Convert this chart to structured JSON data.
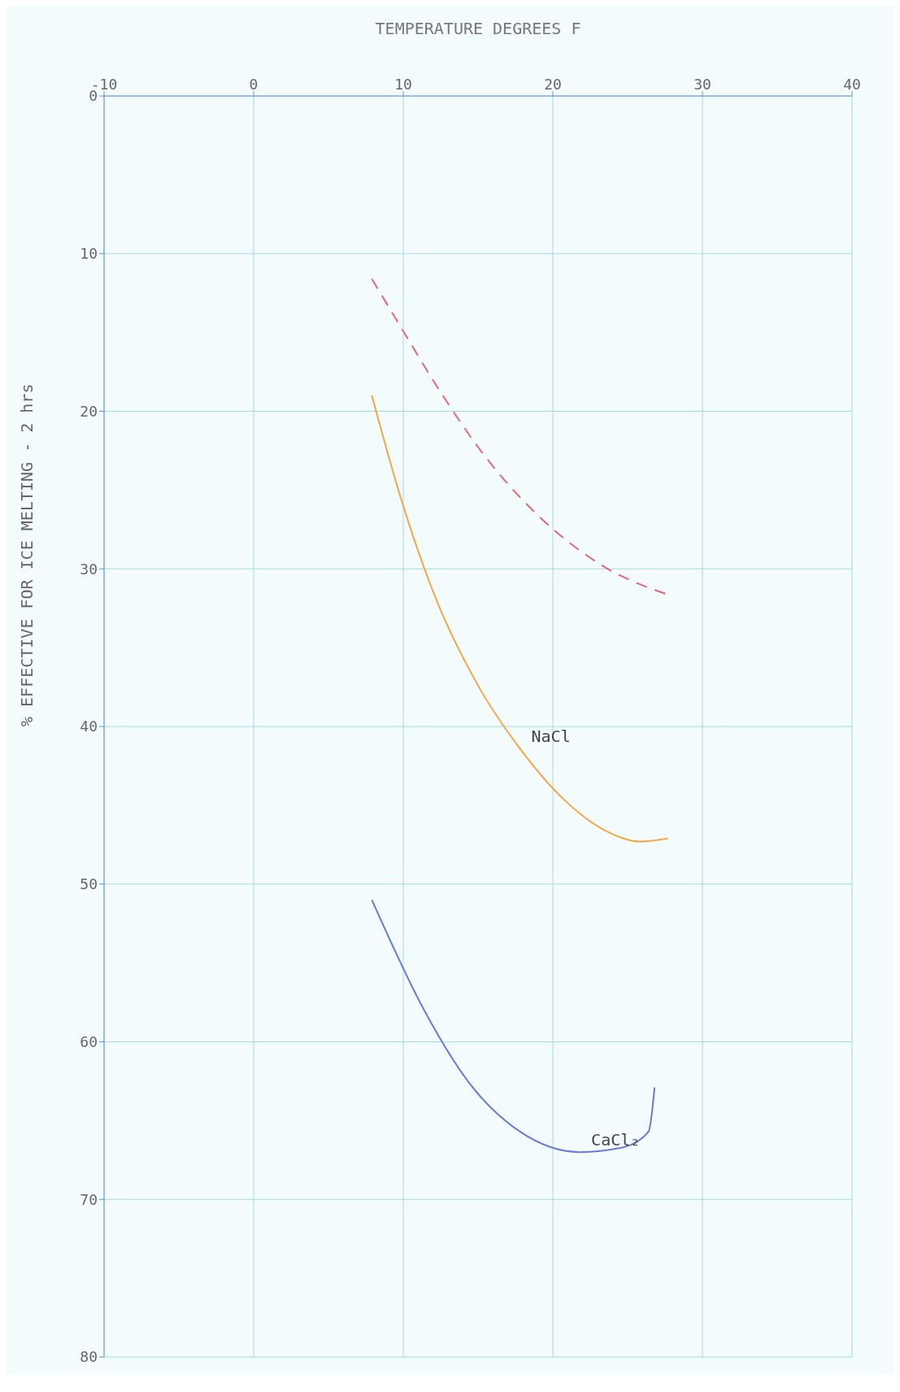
{
  "chart_data": {
    "type": "line",
    "xlabel": "TEMPERATURE DEGREES F",
    "ylabel": "% EFFECTIVE FOR ICE MELTING - 2 hrs",
    "xlim": [
      -10,
      40
    ],
    "xticks": [
      -10,
      0,
      10,
      20,
      30,
      40
    ],
    "ylim": [
      80,
      0
    ],
    "yticks": [
      0,
      10,
      20,
      30,
      40,
      50,
      60,
      70,
      80
    ],
    "grid": true,
    "marker": "none",
    "legend": false,
    "series": [
      {
        "color": "#e06878",
        "line_style": "dashed",
        "x": [
          7.9,
          9.8,
          12.3,
          15.5,
          19,
          23.5,
          27.9
        ],
        "values": [
          11.6,
          14.6,
          18.5,
          22.9,
          26.6,
          29.9,
          31.7
        ]
      },
      {
        "name": "NaCl",
        "color": "#f0a848",
        "line_style": "solid",
        "x": [
          7.9,
          9.8,
          12.1,
          15,
          17.8,
          20.7,
          23.5,
          25.8,
          27.7
        ],
        "values": [
          19,
          25.4,
          31.7,
          37.4,
          41.4,
          44.6,
          46.6,
          47.3,
          47.1
        ]
      },
      {
        "name": "CaCl₂",
        "color": "#6a78d8",
        "line_style": "solid",
        "x": [
          7.9,
          11.4,
          14.4,
          17.8,
          21.8,
          24.7,
          26.4,
          26.8
        ],
        "values": [
          51,
          58,
          62.6,
          65.7,
          67,
          66.7,
          65.7,
          62.9
        ]
      }
    ]
  }
}
